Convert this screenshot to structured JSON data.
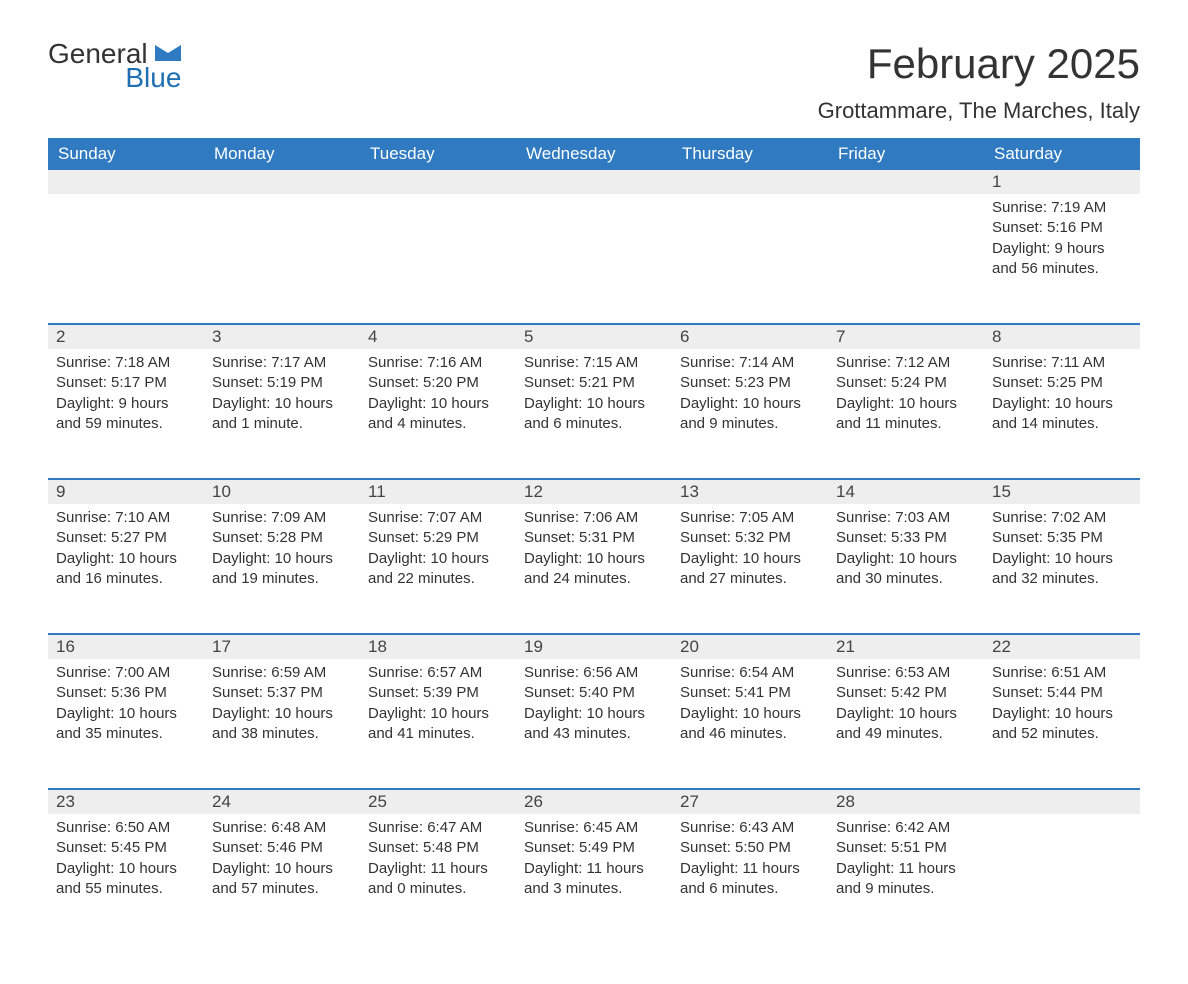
{
  "logo": {
    "text1": "General",
    "text2": "Blue",
    "color_general": "#333333",
    "color_blue": "#1f6fb2",
    "icon_color": "#2f7ac0"
  },
  "title": "February 2025",
  "subtitle": "Grottammare, The Marches, Italy",
  "colors": {
    "header_bg": "#2f7ac0",
    "header_text": "#ffffff",
    "daynum_bg": "#eeeeee",
    "row_border": "#2f7ac0",
    "body_text": "#333333"
  },
  "weekdays": [
    "Sunday",
    "Monday",
    "Tuesday",
    "Wednesday",
    "Thursday",
    "Friday",
    "Saturday"
  ],
  "weeks": [
    [
      null,
      null,
      null,
      null,
      null,
      null,
      {
        "d": "1",
        "sunrise": "7:19 AM",
        "sunset": "5:16 PM",
        "daylight": "9 hours and 56 minutes."
      }
    ],
    [
      {
        "d": "2",
        "sunrise": "7:18 AM",
        "sunset": "5:17 PM",
        "daylight": "9 hours and 59 minutes."
      },
      {
        "d": "3",
        "sunrise": "7:17 AM",
        "sunset": "5:19 PM",
        "daylight": "10 hours and 1 minute."
      },
      {
        "d": "4",
        "sunrise": "7:16 AM",
        "sunset": "5:20 PM",
        "daylight": "10 hours and 4 minutes."
      },
      {
        "d": "5",
        "sunrise": "7:15 AM",
        "sunset": "5:21 PM",
        "daylight": "10 hours and 6 minutes."
      },
      {
        "d": "6",
        "sunrise": "7:14 AM",
        "sunset": "5:23 PM",
        "daylight": "10 hours and 9 minutes."
      },
      {
        "d": "7",
        "sunrise": "7:12 AM",
        "sunset": "5:24 PM",
        "daylight": "10 hours and 11 minutes."
      },
      {
        "d": "8",
        "sunrise": "7:11 AM",
        "sunset": "5:25 PM",
        "daylight": "10 hours and 14 minutes."
      }
    ],
    [
      {
        "d": "9",
        "sunrise": "7:10 AM",
        "sunset": "5:27 PM",
        "daylight": "10 hours and 16 minutes."
      },
      {
        "d": "10",
        "sunrise": "7:09 AM",
        "sunset": "5:28 PM",
        "daylight": "10 hours and 19 minutes."
      },
      {
        "d": "11",
        "sunrise": "7:07 AM",
        "sunset": "5:29 PM",
        "daylight": "10 hours and 22 minutes."
      },
      {
        "d": "12",
        "sunrise": "7:06 AM",
        "sunset": "5:31 PM",
        "daylight": "10 hours and 24 minutes."
      },
      {
        "d": "13",
        "sunrise": "7:05 AM",
        "sunset": "5:32 PM",
        "daylight": "10 hours and 27 minutes."
      },
      {
        "d": "14",
        "sunrise": "7:03 AM",
        "sunset": "5:33 PM",
        "daylight": "10 hours and 30 minutes."
      },
      {
        "d": "15",
        "sunrise": "7:02 AM",
        "sunset": "5:35 PM",
        "daylight": "10 hours and 32 minutes."
      }
    ],
    [
      {
        "d": "16",
        "sunrise": "7:00 AM",
        "sunset": "5:36 PM",
        "daylight": "10 hours and 35 minutes."
      },
      {
        "d": "17",
        "sunrise": "6:59 AM",
        "sunset": "5:37 PM",
        "daylight": "10 hours and 38 minutes."
      },
      {
        "d": "18",
        "sunrise": "6:57 AM",
        "sunset": "5:39 PM",
        "daylight": "10 hours and 41 minutes."
      },
      {
        "d": "19",
        "sunrise": "6:56 AM",
        "sunset": "5:40 PM",
        "daylight": "10 hours and 43 minutes."
      },
      {
        "d": "20",
        "sunrise": "6:54 AM",
        "sunset": "5:41 PM",
        "daylight": "10 hours and 46 minutes."
      },
      {
        "d": "21",
        "sunrise": "6:53 AM",
        "sunset": "5:42 PM",
        "daylight": "10 hours and 49 minutes."
      },
      {
        "d": "22",
        "sunrise": "6:51 AM",
        "sunset": "5:44 PM",
        "daylight": "10 hours and 52 minutes."
      }
    ],
    [
      {
        "d": "23",
        "sunrise": "6:50 AM",
        "sunset": "5:45 PM",
        "daylight": "10 hours and 55 minutes."
      },
      {
        "d": "24",
        "sunrise": "6:48 AM",
        "sunset": "5:46 PM",
        "daylight": "10 hours and 57 minutes."
      },
      {
        "d": "25",
        "sunrise": "6:47 AM",
        "sunset": "5:48 PM",
        "daylight": "11 hours and 0 minutes."
      },
      {
        "d": "26",
        "sunrise": "6:45 AM",
        "sunset": "5:49 PM",
        "daylight": "11 hours and 3 minutes."
      },
      {
        "d": "27",
        "sunrise": "6:43 AM",
        "sunset": "5:50 PM",
        "daylight": "11 hours and 6 minutes."
      },
      {
        "d": "28",
        "sunrise": "6:42 AM",
        "sunset": "5:51 PM",
        "daylight": "11 hours and 9 minutes."
      },
      null
    ]
  ],
  "labels": {
    "sunrise": "Sunrise: ",
    "sunset": "Sunset: ",
    "daylight": "Daylight: "
  }
}
